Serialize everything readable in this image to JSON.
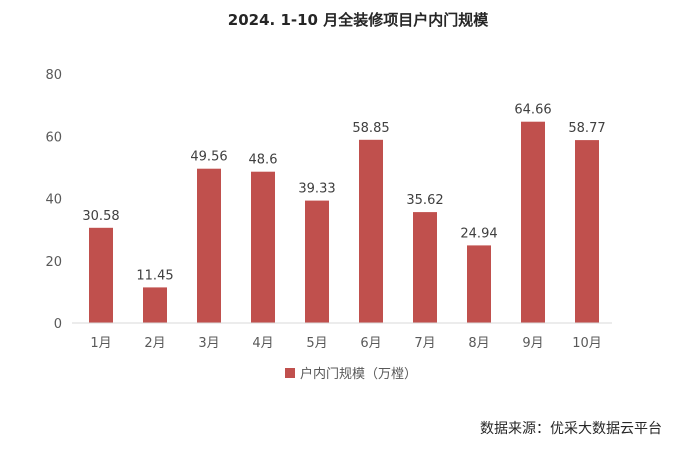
{
  "chart_data": {
    "type": "bar",
    "title": "2024. 1-10 月全装修项目户内门规模",
    "categories": [
      "1月",
      "2月",
      "3月",
      "4月",
      "5月",
      "6月",
      "7月",
      "8月",
      "9月",
      "10月"
    ],
    "series": [
      {
        "name": "户内门规模（万樘）",
        "values": [
          30.58,
          11.45,
          49.56,
          48.6,
          39.33,
          58.85,
          35.62,
          24.94,
          64.66,
          58.77
        ],
        "color": "#C0504D"
      }
    ],
    "y_ticks": [
      "0",
      "20",
      "40",
      "60",
      "80"
    ],
    "ylim": [
      0,
      80
    ],
    "xlabel": "",
    "ylabel": "",
    "grid": false,
    "legend_position": "bottom",
    "data_labels": true
  },
  "source_note": "数据来源：优采大数据云平台",
  "colors": {
    "bar": "#C0504D",
    "axis": "#D9D9D9"
  }
}
